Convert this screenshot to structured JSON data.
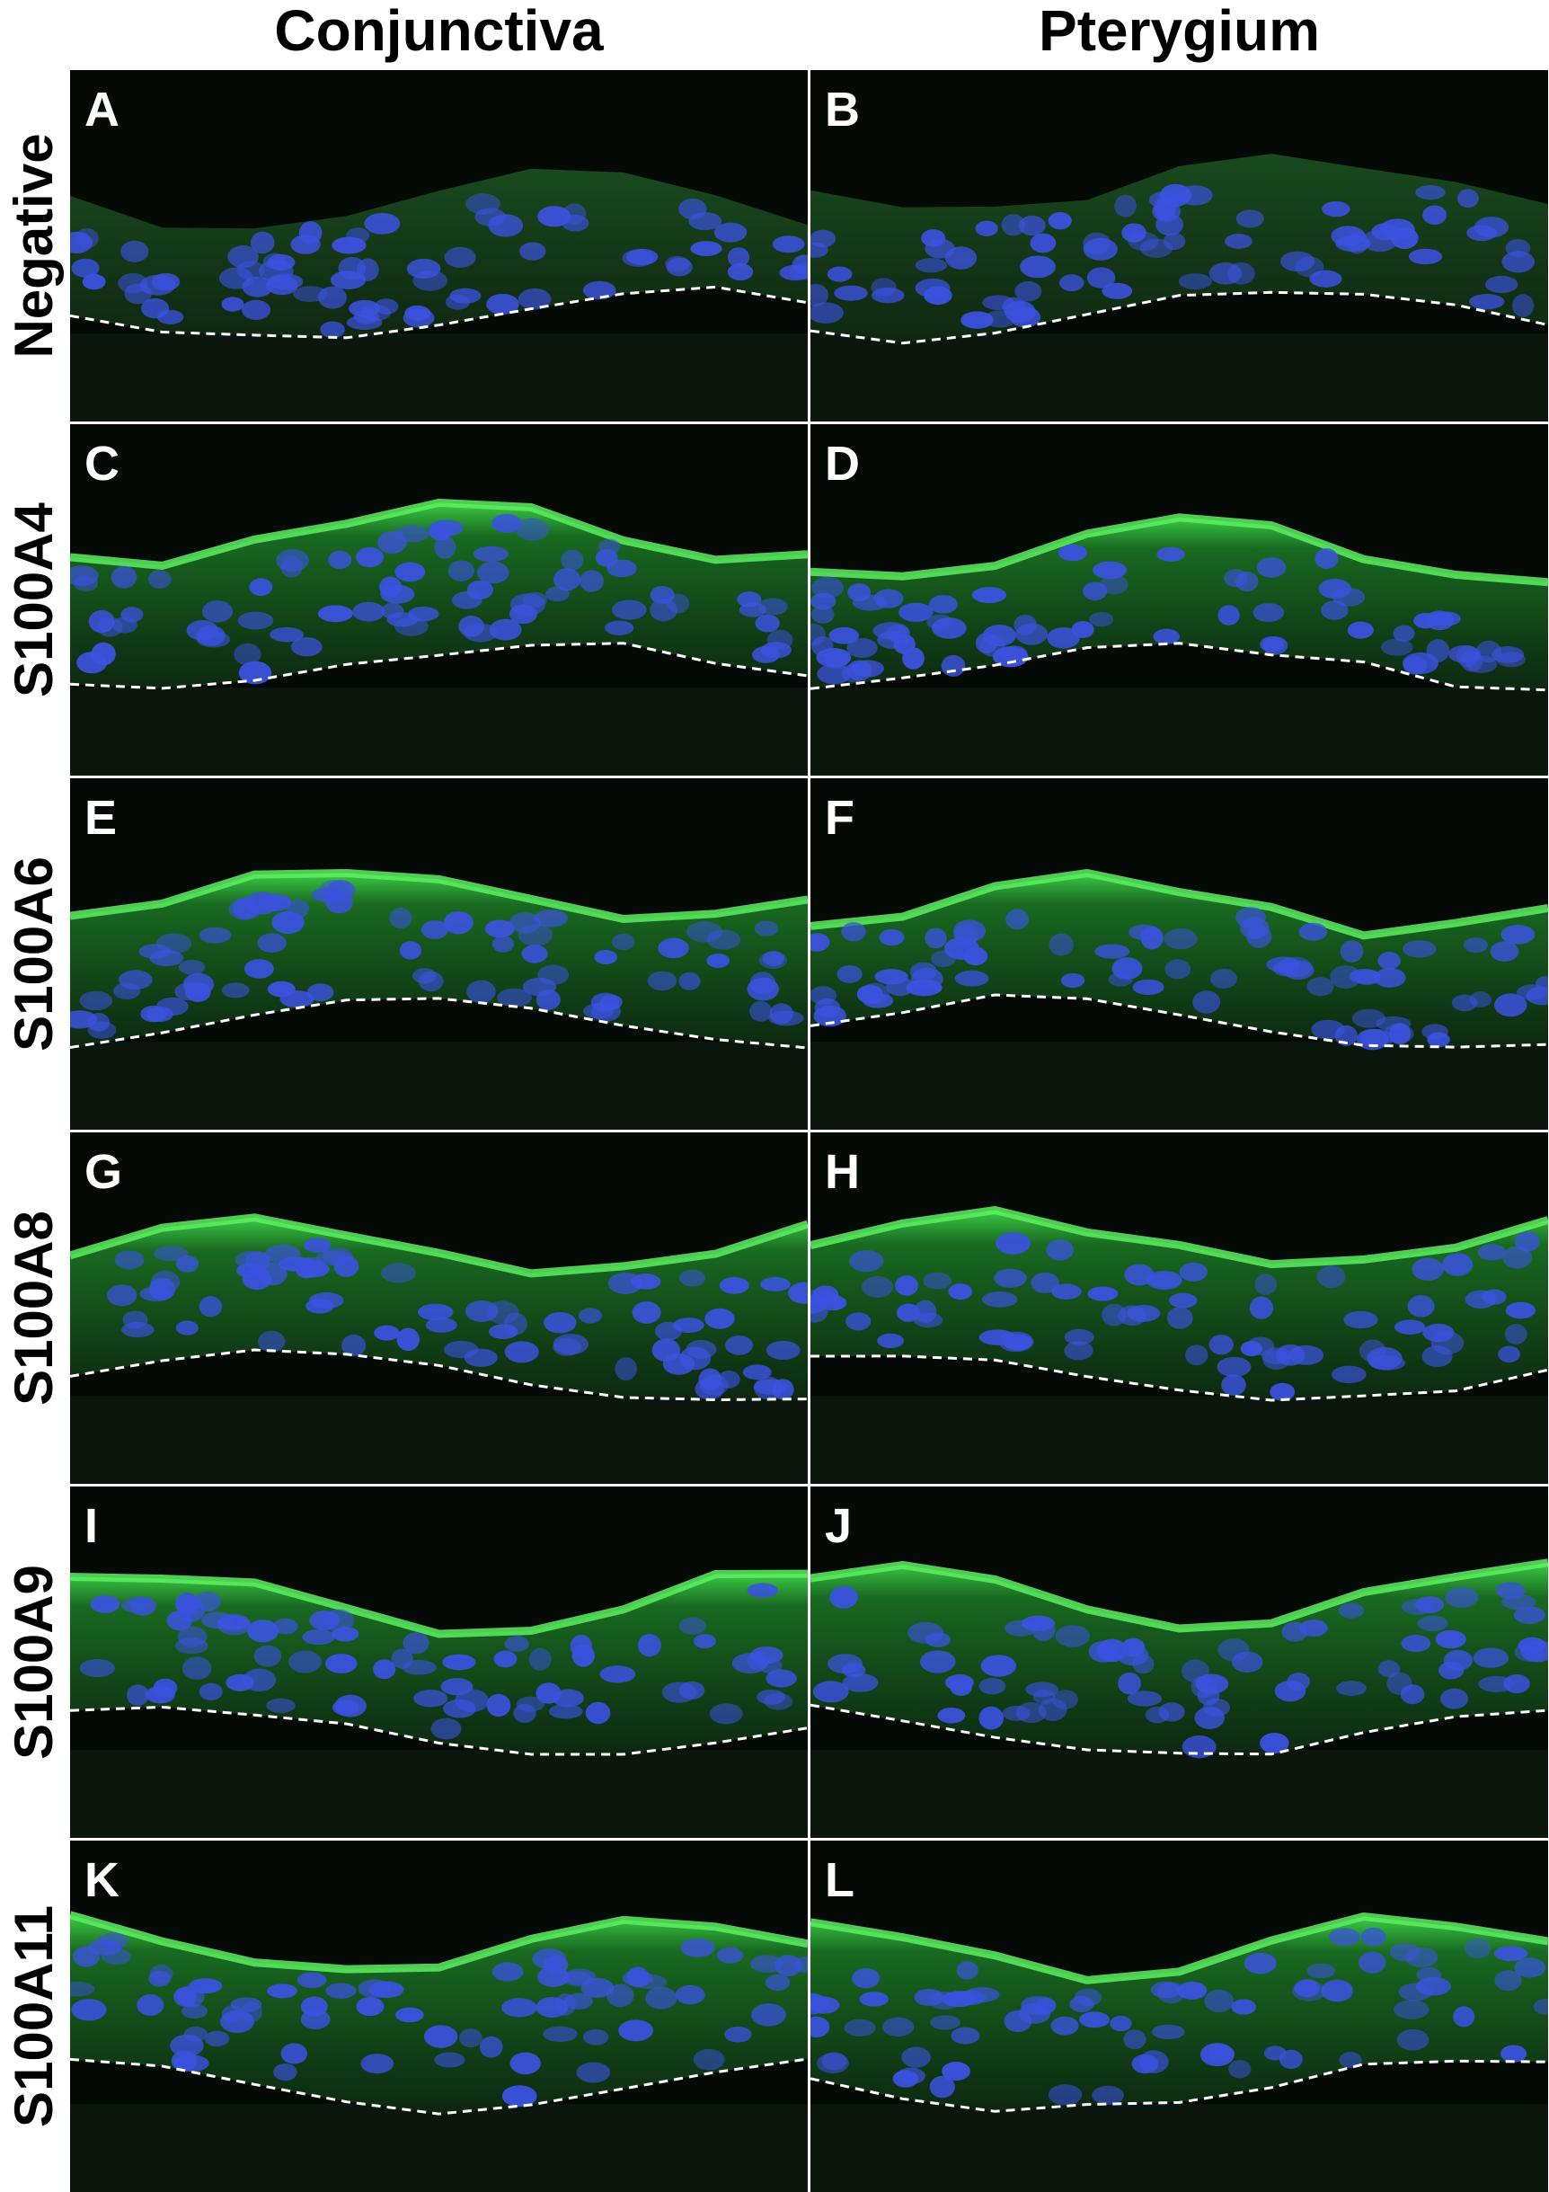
{
  "columns": [
    "Conjunctiva",
    "Pterygium"
  ],
  "rows": [
    {
      "label": "Negative",
      "panels": [
        "A",
        "B"
      ]
    },
    {
      "label": "S100A4",
      "panels": [
        "C",
        "D"
      ]
    },
    {
      "label": "S100A6",
      "panels": [
        "E",
        "F"
      ]
    },
    {
      "label": "S100A8",
      "panels": [
        "G",
        "H"
      ]
    },
    {
      "label": "S100A9",
      "panels": [
        "I",
        "J"
      ]
    },
    {
      "label": "S100A11",
      "panels": [
        "K",
        "L"
      ]
    }
  ]
}
